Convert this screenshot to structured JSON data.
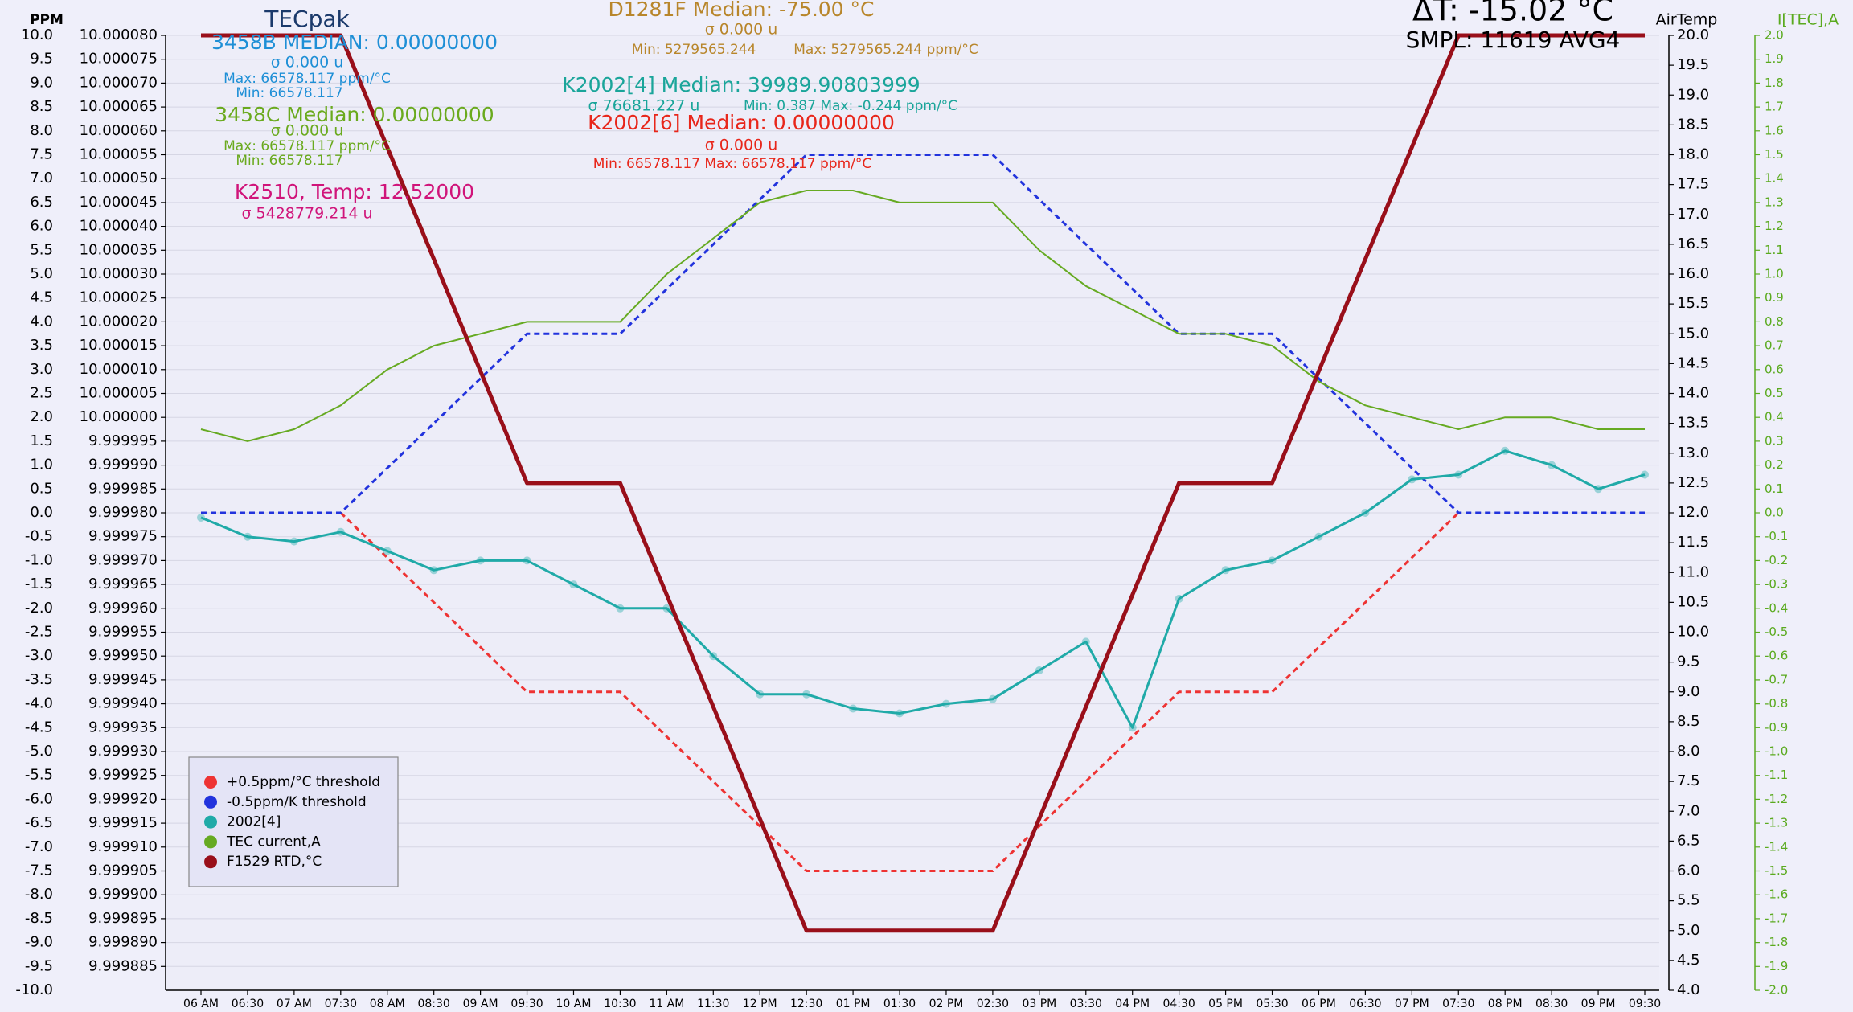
{
  "chart_data": {
    "type": "line",
    "y_label": "PPM",
    "y3_label": "AirTemp",
    "y4_label": "I[TEC],A",
    "y4color": "#5aaa1e",
    "grid": true,
    "legend": "lower left",
    "categories": [
      "06 AM",
      "06:30",
      "07 AM",
      "07:30",
      "08 AM",
      "08:30",
      "09 AM",
      "09:30",
      "10 AM",
      "10:30",
      "11 AM",
      "11:30",
      "12 PM",
      "12:30",
      "01 PM",
      "01:30",
      "02 PM",
      "02:30",
      "03 PM",
      "03:30",
      "04 PM",
      "04:30",
      "05 PM",
      "05:30",
      "06 PM",
      "06:30",
      "07 PM",
      "07:30",
      "08 PM",
      "08:30",
      "09 PM",
      "09:30"
    ],
    "series": [
      {
        "name": "+0.5ppm/°C threshold",
        "color": "#ee3333",
        "style": "dashed",
        "axis": "y",
        "values": [
          null,
          null,
          null,
          0,
          -0.9375,
          -1.875,
          -2.8125,
          -3.75,
          -3.75,
          -3.75,
          -4.6875,
          -5.625,
          -6.5625,
          -7.5,
          -7.5,
          -7.5,
          -7.5,
          -7.5,
          -6.5625,
          -5.625,
          -4.6875,
          -3.75,
          -3.75,
          -3.75,
          -2.8125,
          -1.875,
          -0.9375,
          0,
          null,
          null,
          null,
          null
        ]
      },
      {
        "name": "-0.5ppm/K threshold",
        "color": "#2233dd",
        "style": "dashed",
        "axis": "y",
        "values": [
          0,
          0,
          0,
          0,
          0.9375,
          1.875,
          2.8125,
          3.75,
          3.75,
          3.75,
          4.6875,
          5.625,
          6.5625,
          7.5,
          7.5,
          7.5,
          7.5,
          7.5,
          6.5625,
          5.625,
          4.6875,
          3.75,
          3.75,
          3.75,
          2.8125,
          1.875,
          0.9375,
          0,
          0,
          0,
          0,
          0
        ]
      },
      {
        "name": "2002[4]",
        "color": "#20aaa8",
        "style": "solid",
        "axis": "y",
        "values": [
          -0.1,
          -0.5,
          -0.6,
          -0.4,
          -0.8,
          -1.2,
          -1.0,
          -1.0,
          -1.5,
          -2.0,
          -2.0,
          -3.0,
          -3.8,
          -3.8,
          -4.1,
          -4.2,
          -4.0,
          -3.9,
          -3.3,
          -2.7,
          -4.5,
          -1.8,
          -1.2,
          -1.0,
          -0.5,
          0,
          0.7,
          0.8,
          1.3,
          1.0,
          0.5,
          0.8
        ]
      },
      {
        "name": "TEC current,A",
        "color": "#66aa22",
        "style": "solid",
        "axis": "y4",
        "values": [
          0.35,
          0.3,
          0.35,
          0.45,
          0.6,
          0.7,
          0.75,
          0.8,
          0.8,
          0.8,
          1.0,
          1.15,
          1.3,
          1.35,
          1.35,
          1.3,
          1.3,
          1.3,
          1.1,
          0.95,
          0.85,
          0.75,
          0.75,
          0.7,
          0.55,
          0.45,
          0.4,
          0.35,
          0.4,
          0.4,
          0.35,
          0.35
        ]
      },
      {
        "name": "F1529 RTD,°C",
        "color": "#990f1a",
        "style": "solid",
        "axis": "y3",
        "values": [
          20,
          20,
          20,
          20,
          18.125,
          16.25,
          14.375,
          12.5,
          12.5,
          12.5,
          10.625,
          8.75,
          6.875,
          5,
          5,
          5,
          5,
          5,
          6.875,
          8.75,
          10.625,
          12.5,
          12.5,
          12.5,
          14.375,
          16.25,
          18.125,
          20,
          20,
          20,
          20,
          20
        ]
      }
    ],
    "ylim": [
      -10,
      10
    ],
    "yticks": [
      {
        "value": 10,
        "label": "10.0"
      },
      9.5,
      {
        "value": 9,
        "label": "9.0"
      },
      8.5,
      {
        "value": 8,
        "label": "8.0"
      },
      7.5,
      {
        "value": 7,
        "label": "7.0"
      },
      6.5,
      {
        "value": 6,
        "label": "6.0"
      },
      5.5,
      {
        "value": 5,
        "label": "5.0"
      },
      4.5,
      {
        "value": 4,
        "label": "4.0"
      },
      3.5,
      {
        "value": 3,
        "label": "3.0"
      },
      2.5,
      {
        "value": 2,
        "label": "2.0"
      },
      1.5,
      {
        "value": 1,
        "label": "1.0"
      },
      0.5,
      {
        "value": 0,
        "label": "0.0"
      },
      -0.5,
      {
        "value": -1,
        "label": "-1.0"
      },
      -1.5,
      {
        "value": -2,
        "label": "-2.0"
      },
      -2.5,
      {
        "value": -3,
        "label": "-3.0"
      },
      -3.5,
      {
        "value": -4,
        "label": "-4.0"
      },
      -4.5,
      {
        "value": -5,
        "label": "-5.0"
      },
      -5.5,
      {
        "value": -6,
        "label": "-6.0"
      },
      -6.5,
      {
        "value": -7,
        "label": "-7.0"
      },
      -7.5,
      {
        "value": -8,
        "label": "-8.0"
      },
      -8.5,
      {
        "value": -9,
        "label": "-9.0"
      },
      -9.5,
      {
        "value": -10,
        "label": "-10.0"
      }
    ],
    "y2lim": [
      9.99988,
      10.00008
    ],
    "y2ticks": [
      {
        "value": 10.00008,
        "label": "10.000080"
      },
      10.000075,
      {
        "value": 10.00007,
        "label": "10.000070"
      },
      10.000065,
      {
        "value": 10.00006,
        "label": "10.000060"
      },
      10.000055,
      {
        "value": 10.00005,
        "label": "10.000050"
      },
      10.000045,
      {
        "value": 10.00004,
        "label": "10.000040"
      },
      10.000035,
      {
        "value": 10.00003,
        "label": "10.000030"
      },
      10.000025,
      {
        "value": 10.00002,
        "label": "10.000020"
      },
      10.000015,
      {
        "value": 10.00001,
        "label": "10.000010"
      },
      10.000005,
      {
        "value": 10,
        "label": "10.000000"
      },
      9.999995,
      {
        "value": 9.99999,
        "label": "9.999990"
      },
      9.999985,
      {
        "value": 9.99998,
        "label": "9.999980"
      },
      9.999975,
      {
        "value": 9.99997,
        "label": "9.999970"
      },
      9.999965,
      {
        "value": 9.99996,
        "label": "9.999960"
      },
      9.999955,
      {
        "value": 9.99995,
        "label": "9.999950"
      },
      9.999945,
      {
        "value": 9.99994,
        "label": "9.999940"
      },
      9.999935,
      {
        "value": 9.99993,
        "label": "9.999930"
      },
      9.999925,
      {
        "value": 9.99992,
        "label": "9.999920"
      },
      9.999915,
      {
        "value": 9.99991,
        "label": "9.999910"
      },
      9.999905,
      {
        "value": 9.9999,
        "label": "9.999900"
      },
      9.999895,
      {
        "value": 9.99989,
        "label": "9.999890"
      },
      9.999885
    ],
    "y3lim": [
      4,
      20
    ],
    "y3ticks": [
      {
        "value": 20,
        "label": "20.0"
      },
      19.5,
      {
        "value": 19,
        "label": "19.0"
      },
      18.5,
      {
        "value": 18,
        "label": "18.0"
      },
      17.5,
      {
        "value": 17,
        "label": "17.0"
      },
      16.5,
      {
        "value": 16,
        "label": "16.0"
      },
      15.5,
      {
        "value": 15,
        "label": "15.0"
      },
      14.5,
      {
        "value": 14,
        "label": "14.0"
      },
      13.5,
      {
        "value": 13,
        "label": "13.0"
      },
      12.5,
      {
        "value": 12,
        "label": "12.0"
      },
      11.5,
      {
        "value": 11,
        "label": "11.0"
      },
      10.5,
      {
        "value": 10,
        "label": "10.0"
      },
      9.5,
      {
        "value": 9,
        "label": "9.0"
      },
      8.5,
      {
        "value": 8,
        "label": "8.0"
      },
      7.5,
      {
        "value": 7,
        "label": "7.0"
      },
      6.5,
      {
        "value": 6,
        "label": "6.0"
      },
      5.5,
      {
        "value": 5,
        "label": "5.0"
      },
      4.5,
      {
        "value": 4,
        "label": "4.0"
      }
    ],
    "y4lim": [
      -2,
      2
    ],
    "y4ticks": [
      {
        "value": 2,
        "label": "2.0"
      },
      1.9,
      1.8,
      1.7,
      1.6,
      1.5,
      1.4,
      1.3,
      1.2,
      1.1,
      {
        "value": 1,
        "label": "1.0"
      },
      0.9,
      0.8,
      0.7,
      0.6,
      0.5,
      0.4,
      0.3,
      0.2,
      0.1,
      {
        "value": 0,
        "label": "0.0"
      },
      -0.1,
      -0.2,
      -0.3,
      -0.4,
      -0.5,
      -0.6,
      -0.7,
      -0.8,
      -0.9,
      {
        "value": -1,
        "label": "-1.0"
      },
      -1.1,
      -1.2,
      -1.3,
      -1.4,
      -1.5,
      -1.6,
      -1.7,
      -1.8,
      -1.9,
      {
        "value": -2,
        "label": "-2.0"
      }
    ],
    "annotations": [
      {
        "text": "TECpak",
        "color": "#1b3a6b"
      },
      {
        "text": "3458B MEDIAN: 0.00000000",
        "color": "#1e8fd6"
      },
      {
        "text": "σ 0.000 u",
        "color": "#1e8fd6"
      },
      {
        "text": "Max: 66578.117 ppm/°C",
        "color": "#1e8fd6"
      },
      {
        "text": "Min: 66578.117",
        "color": "#1e8fd6"
      },
      {
        "text": "3458C Median: 0.00000000",
        "color": "#6aaa1e"
      },
      {
        "text": "σ 0.000 u",
        "color": "#6aaa1e"
      },
      {
        "text": "Max: 66578.117 ppm/°C",
        "color": "#6aaa1e"
      },
      {
        "text": "Min: 66578.117",
        "color": "#6aaa1e"
      },
      {
        "text": "K2510, Temp: 12.52000",
        "color": "#d0147a"
      },
      {
        "text": "σ 5428779.214 u",
        "color": "#d0147a"
      },
      {
        "text": "D1281F Median: -75.00 °C",
        "color": "#b8862b"
      },
      {
        "text": "σ 0.000 u",
        "color": "#b8862b"
      },
      {
        "text": "Min: 5279565.244",
        "color": "#b8862b"
      },
      {
        "text": "Max: 5279565.244 ppm/°C",
        "color": "#b8862b"
      },
      {
        "text": "K2002[4] Median: 39989.90803999",
        "color": "#1aa59a"
      },
      {
        "text": "σ 76681.227 u",
        "color": "#1aa59a"
      },
      {
        "text": "Min: 0.387  Max: -0.244 ppm/°C",
        "color": "#1aa59a"
      },
      {
        "text": "K2002[6] Median: 0.00000000",
        "color": "#e8261a"
      },
      {
        "text": "σ 0.000 u",
        "color": "#e8261a"
      },
      {
        "text": "Min: 66578.117 Max: 66578.117 ppm/°C",
        "color": "#e8261a"
      },
      {
        "text": "ΔT: -15.02 °C",
        "color": "#000000"
      },
      {
        "text": "SMPL: 11619 AVG4",
        "color": "#000000"
      }
    ]
  }
}
